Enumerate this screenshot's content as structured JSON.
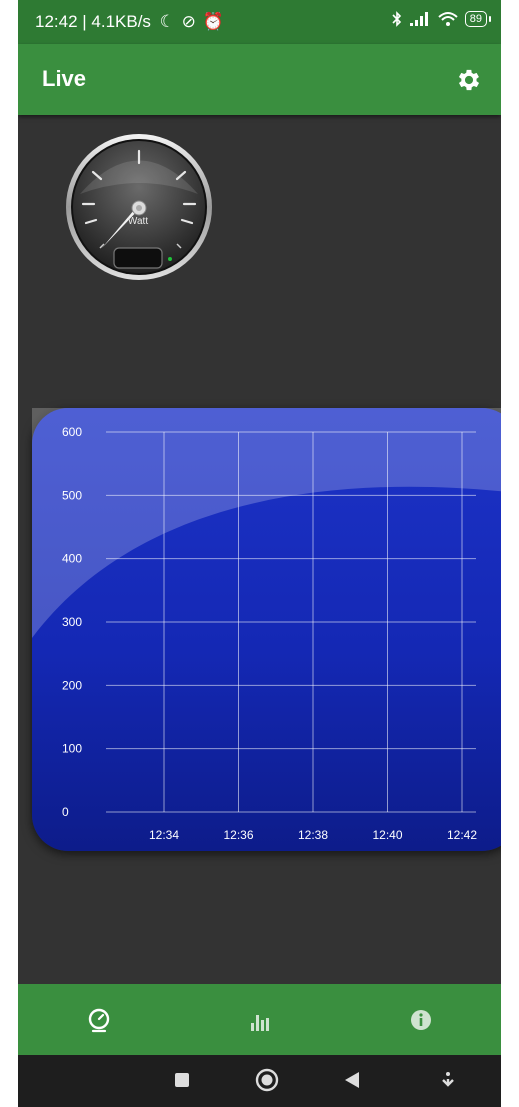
{
  "status_bar": {
    "time": "12:42",
    "left_text": "12:42 | 4.1KB/s",
    "battery": "89",
    "icons": [
      "moon-icon",
      "mute-icon",
      "alarm-icon",
      "bluetooth-icon",
      "signal-icon",
      "wifi-icon",
      "battery-icon"
    ]
  },
  "app_bar": {
    "title": "Live",
    "settings_icon": "gear-icon"
  },
  "gauge": {
    "unit": "Watt",
    "value": 0
  },
  "chart_data": {
    "type": "line",
    "x_ticks": [
      "12:34",
      "12:36",
      "12:38",
      "12:40",
      "12:42"
    ],
    "y_ticks": [
      "0",
      "100",
      "200",
      "300",
      "400",
      "500",
      "600"
    ],
    "ylim": [
      0,
      600
    ],
    "grid": true,
    "series": []
  },
  "bottom_nav": {
    "items": [
      {
        "icon": "speedometer-icon",
        "active": true
      },
      {
        "icon": "bar-chart-icon",
        "active": false
      },
      {
        "icon": "info-icon",
        "active": false
      }
    ]
  },
  "system_nav": {
    "items": [
      "recent-apps-icon",
      "home-icon",
      "back-icon",
      "hide-nav-icon"
    ]
  },
  "colors": {
    "primary": "#3a8f3f",
    "status_bar": "#2e7a33",
    "background": "#333333",
    "chart_fill": "#1a2fc0",
    "system_nav": "#1e1e1e"
  }
}
